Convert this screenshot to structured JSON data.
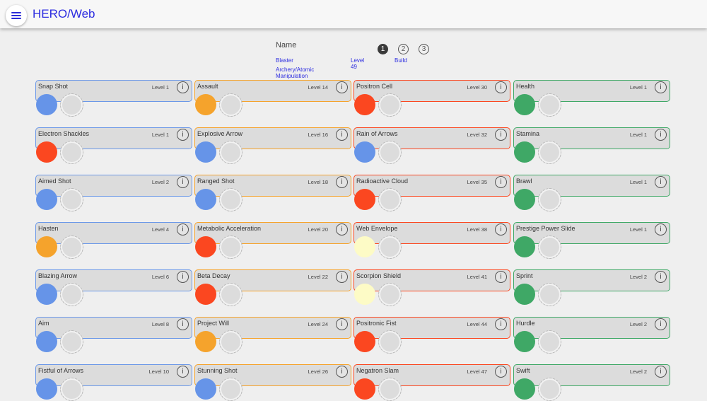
{
  "app": {
    "title": "HERO/Web"
  },
  "header": {
    "name_label": "Name",
    "archetype": "Blaster",
    "powersets": "Archery/Atomic Manipulation",
    "level": "Level 49",
    "steps": [
      "1",
      "2",
      "3"
    ],
    "active_step": 1,
    "build_label": "Build"
  },
  "colors": {
    "blue": "#6694e8",
    "orange": "#f5a32c",
    "red": "#fb4720",
    "green": "#3fa866",
    "cream": "#fdfbc6"
  },
  "columns": [
    {
      "border": "#6b98e8",
      "powers": [
        {
          "name": "Snap Shot",
          "level": "Level 1",
          "slot": "blue"
        },
        {
          "name": "Electron Shackles",
          "level": "Level 1",
          "slot": "red"
        },
        {
          "name": "Aimed Shot",
          "level": "Level 2",
          "slot": "blue"
        },
        {
          "name": "Hasten",
          "level": "Level 4",
          "slot": "orange"
        },
        {
          "name": "Blazing Arrow",
          "level": "Level 6",
          "slot": "blue"
        },
        {
          "name": "Aim",
          "level": "Level 8",
          "slot": "blue"
        },
        {
          "name": "Fistful of Arrows",
          "level": "Level 10",
          "slot": "blue"
        }
      ]
    },
    {
      "border": "#f5a32c",
      "powers": [
        {
          "name": "Assault",
          "level": "Level 14",
          "slot": "orange"
        },
        {
          "name": "Explosive Arrow",
          "level": "Level 16",
          "slot": "blue"
        },
        {
          "name": "Ranged Shot",
          "level": "Level 18",
          "slot": "blue"
        },
        {
          "name": "Metabolic Acceleration",
          "level": "Level 20",
          "slot": "red"
        },
        {
          "name": "Beta Decay",
          "level": "Level 22",
          "slot": "red"
        },
        {
          "name": "Project Will",
          "level": "Level 24",
          "slot": "orange"
        },
        {
          "name": "Stunning Shot",
          "level": "Level 26",
          "slot": "blue"
        }
      ]
    },
    {
      "border": "#fb4720",
      "powers": [
        {
          "name": "Positron Cell",
          "level": "Level 30",
          "slot": "red"
        },
        {
          "name": "Rain of Arrows",
          "level": "Level 32",
          "slot": "blue"
        },
        {
          "name": "Radioactive Cloud",
          "level": "Level 35",
          "slot": "red"
        },
        {
          "name": "Web Envelope",
          "level": "Level 38",
          "slot": "cream"
        },
        {
          "name": "Scorpion Shield",
          "level": "Level 41",
          "slot": "cream"
        },
        {
          "name": "Positronic Fist",
          "level": "Level 44",
          "slot": "red"
        },
        {
          "name": "Negatron Slam",
          "level": "Level 47",
          "slot": "red"
        }
      ]
    },
    {
      "border": "#3fa866",
      "powers": [
        {
          "name": "Health",
          "level": "Level 1",
          "slot": "green"
        },
        {
          "name": "Stamina",
          "level": "Level 1",
          "slot": "green"
        },
        {
          "name": "Brawl",
          "level": "Level 1",
          "slot": "green"
        },
        {
          "name": "Prestige Power Slide",
          "level": "Level 1",
          "slot": "green"
        },
        {
          "name": "Sprint",
          "level": "Level 2",
          "slot": "green"
        },
        {
          "name": "Hurdle",
          "level": "Level 2",
          "slot": "green"
        },
        {
          "name": "Swift",
          "level": "Level 2",
          "slot": "green"
        }
      ]
    }
  ],
  "info_glyph": "i"
}
